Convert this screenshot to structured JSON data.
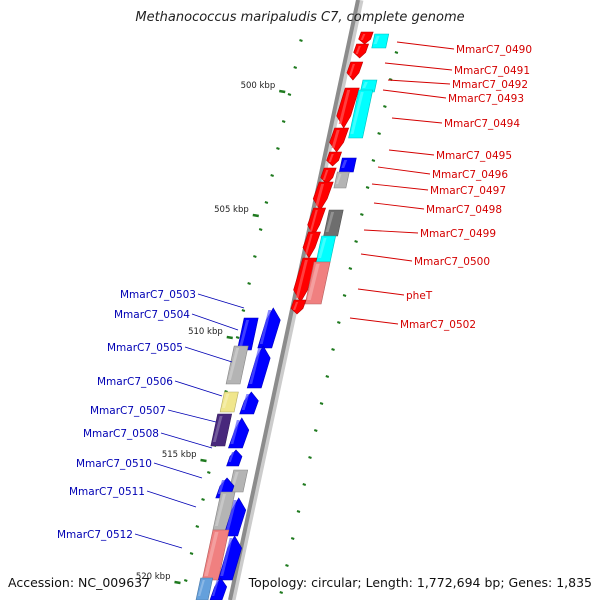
{
  "title": "Methanococcus maripaludis C7, complete genome",
  "accession_label": "Accession: NC_009637",
  "topology_label": "Topology: circular; Length: 1,772,694 bp; Genes: 1,835",
  "colors": {
    "backbone": "#8c8c8c",
    "tick": "#1f7a1f",
    "plus_label": "#d40000",
    "minus_label": "#0000b4",
    "red": "#ff0000",
    "blue": "#0000ff",
    "cyan": "#00ffff",
    "gray": "#b4b4b4",
    "darkgray": "#6e6e6e",
    "salmon": "#f08080",
    "khaki": "#f0e68c",
    "navy": "#48287c",
    "lightblue": "#64a0dc"
  },
  "kbp_labels": [
    "500 kbp",
    "505 kbp",
    "510 kbp",
    "515 kbp",
    "520 kbp"
  ],
  "plus_genes": [
    {
      "name": "MmarC7_0490"
    },
    {
      "name": "MmarC7_0491"
    },
    {
      "name": "MmarC7_0492"
    },
    {
      "name": "MmarC7_0493"
    },
    {
      "name": "MmarC7_0494"
    },
    {
      "name": "MmarC7_0495"
    },
    {
      "name": "MmarC7_0496"
    },
    {
      "name": "MmarC7_0497"
    },
    {
      "name": "MmarC7_0498"
    },
    {
      "name": "MmarC7_0499"
    },
    {
      "name": "MmarC7_0500"
    },
    {
      "name": "pheT"
    },
    {
      "name": "MmarC7_0502"
    }
  ],
  "minus_genes": [
    {
      "name": "MmarC7_0503"
    },
    {
      "name": "MmarC7_0504"
    },
    {
      "name": "MmarC7_0505"
    },
    {
      "name": "MmarC7_0506"
    },
    {
      "name": "MmarC7_0507"
    },
    {
      "name": "MmarC7_0508"
    },
    {
      "name": "MmarC7_0510"
    },
    {
      "name": "MmarC7_0511"
    },
    {
      "name": "MmarC7_0512"
    }
  ]
}
